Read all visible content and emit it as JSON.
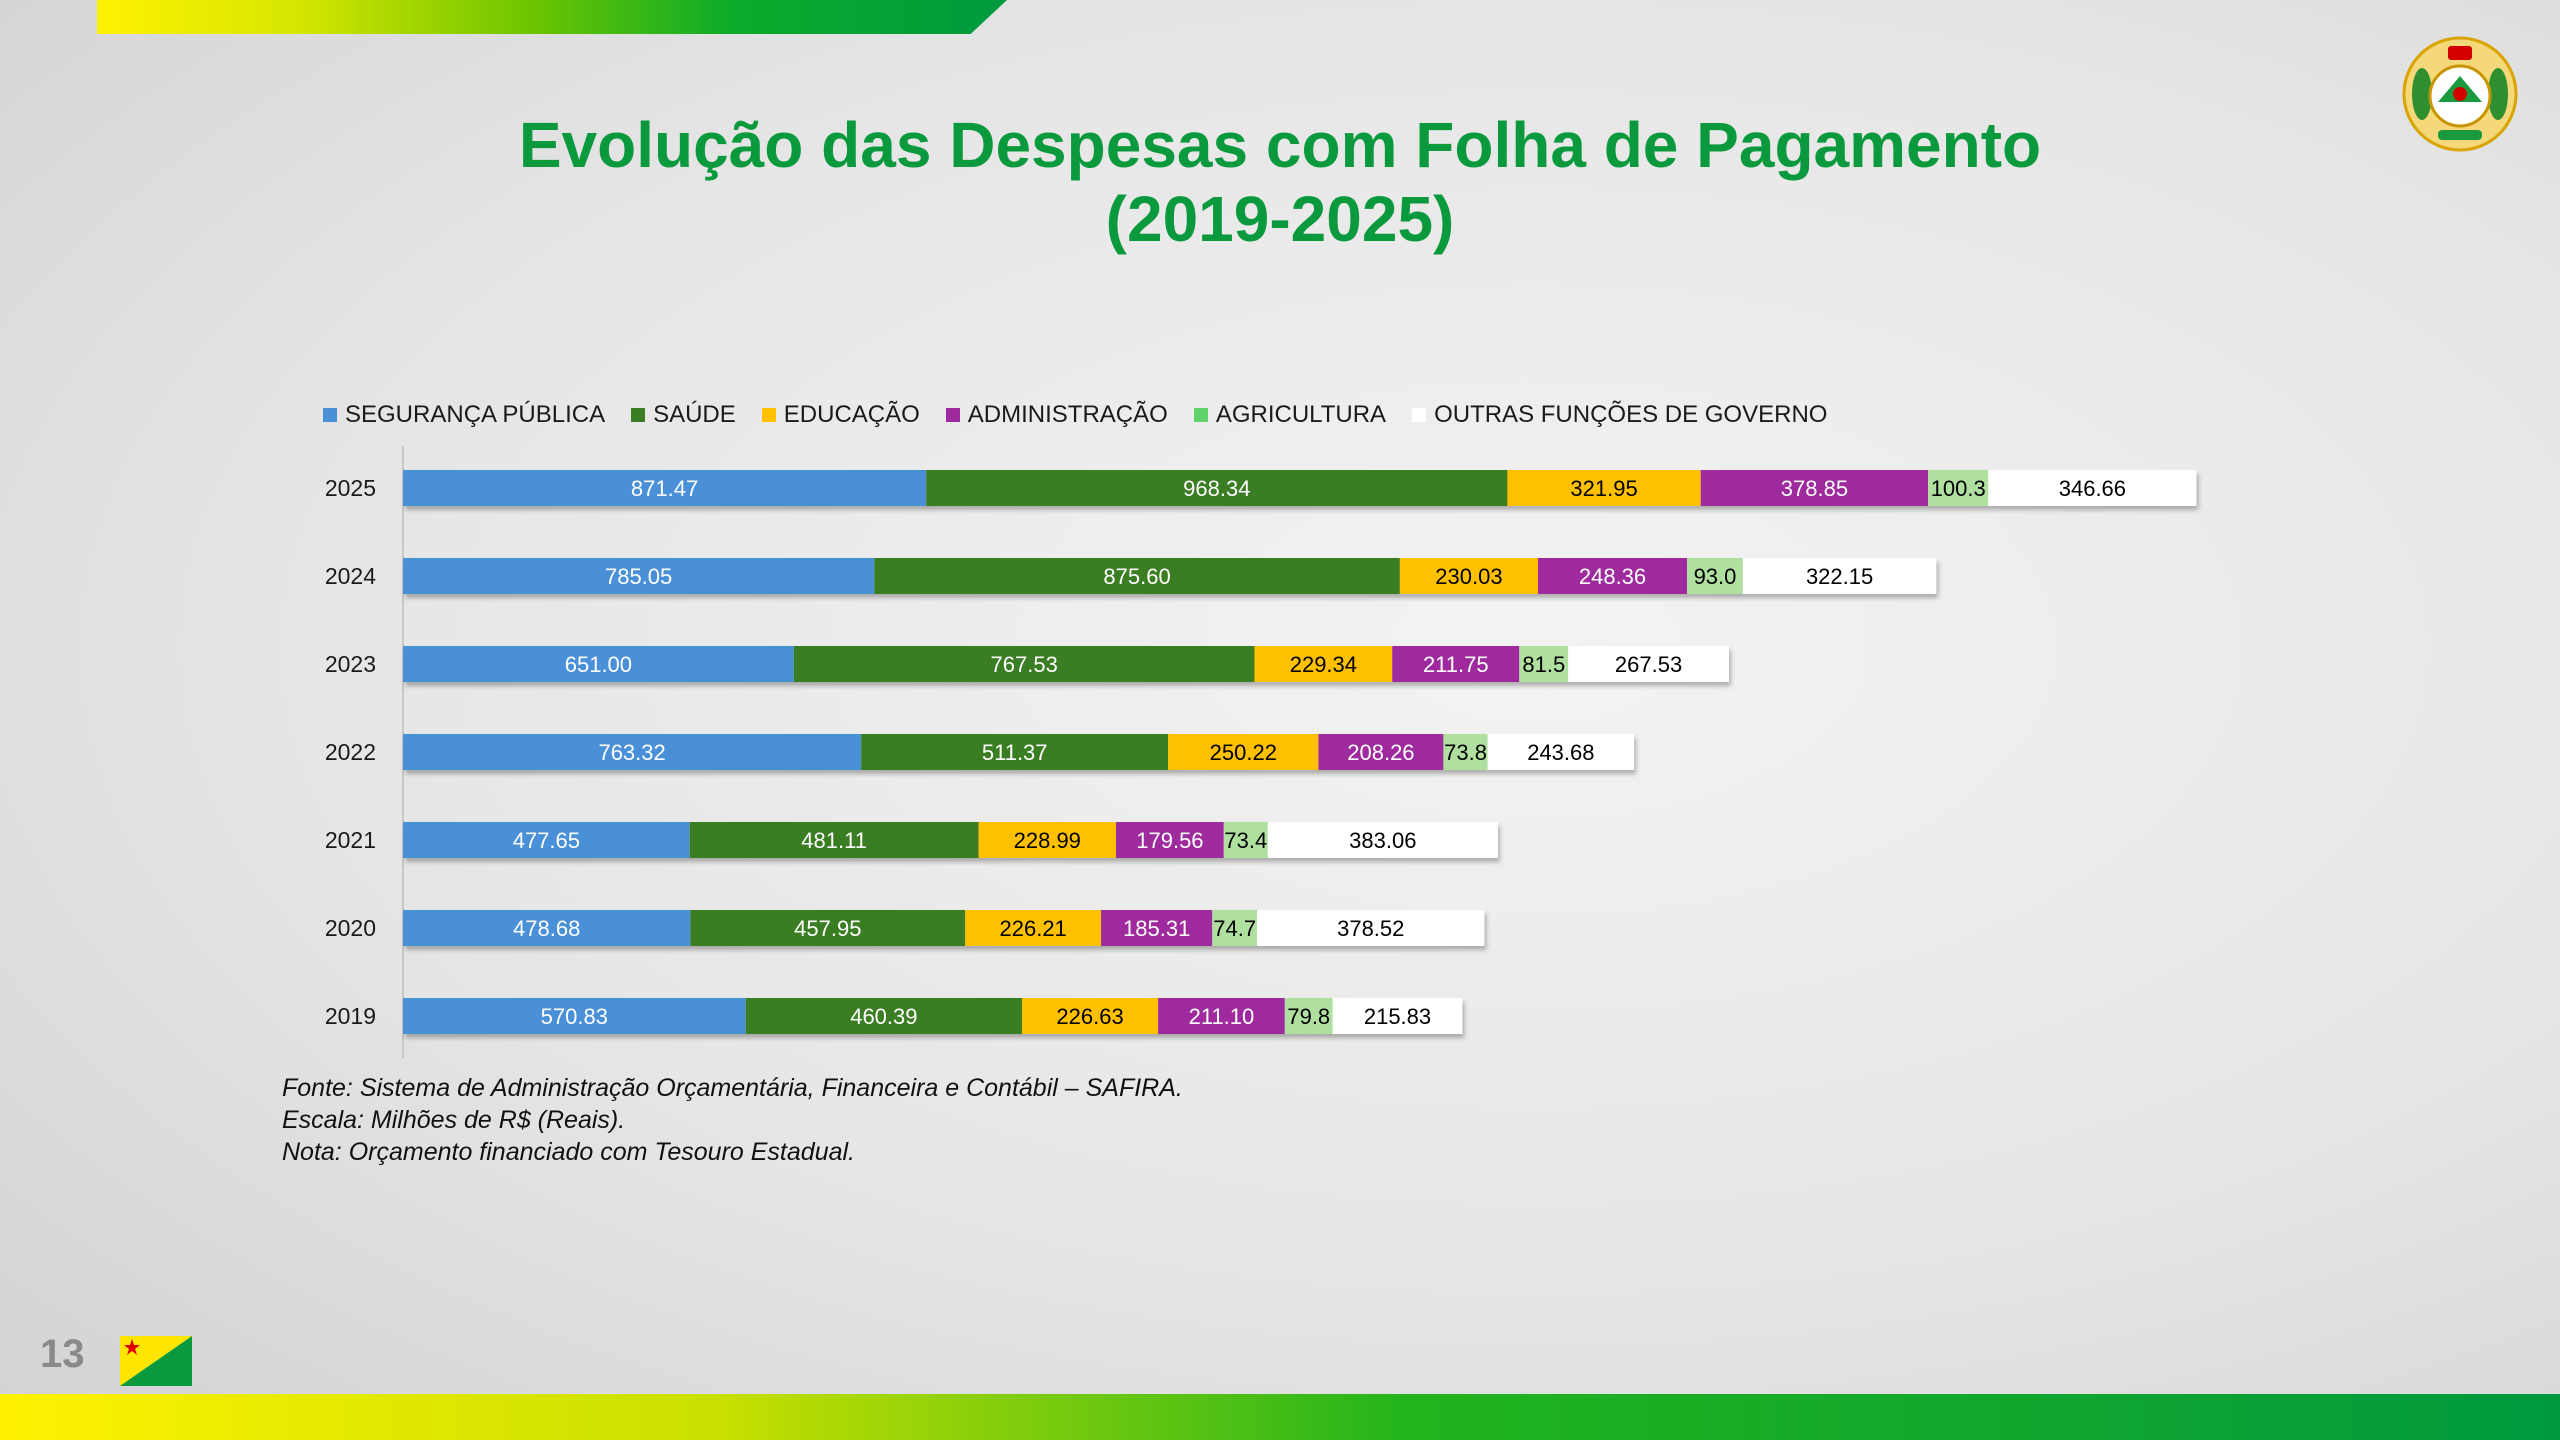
{
  "slide": {
    "title_line1": "Evolução das Despesas com Folha de Pagamento",
    "title_line2": "(2019-2025)",
    "page_number": "13"
  },
  "notes": {
    "fonte": "Fonte: Sistema de Administração Orçamentária, Financeira e Contábil – SAFIRA.",
    "escala": "Escala: Milhões de R$ (Reais).",
    "nota": "Nota: Orçamento financiado com Tesouro Estadual."
  },
  "colors": {
    "title": "#0a9a3d",
    "seguranca": "#4a90d9",
    "saude": "#3a7d22",
    "educacao": "#ffc000",
    "administracao": "#9e2a9e",
    "agricultura": "#b0e0a0",
    "outras": "#ffffff"
  },
  "chart_data": {
    "type": "bar",
    "orientation": "horizontal",
    "stacked": true,
    "title": "Evolução das Despesas com Folha de Pagamento (2019-2025)",
    "xlabel": "",
    "ylabel": "",
    "units": "Milhões de R$",
    "legend_position": "top",
    "categories": [
      "2025",
      "2024",
      "2023",
      "2022",
      "2021",
      "2020",
      "2019"
    ],
    "xlim": [
      0,
      3000
    ],
    "series": [
      {
        "name": "SEGURANÇA PÚBLICA",
        "color": "#4a90d9",
        "label_color": "#ffffff",
        "values": [
          871.47,
          785.05,
          651.0,
          763.32,
          477.65,
          478.68,
          570.83
        ],
        "labels": [
          "871.47",
          "785.05",
          "651.00",
          "763.32",
          "477.65",
          "478.68",
          "570.83"
        ]
      },
      {
        "name": "SAÚDE",
        "color": "#3a7d22",
        "label_color": "#ffffff",
        "values": [
          968.34,
          875.6,
          767.53,
          511.37,
          481.11,
          457.95,
          460.39
        ],
        "labels": [
          "968.34",
          "875.60",
          "767.53",
          "511.37",
          "481.11",
          "457.95",
          "460.39"
        ]
      },
      {
        "name": "EDUCAÇÃO",
        "color": "#ffc000",
        "label_color": "#000000",
        "values": [
          321.95,
          230.03,
          229.34,
          250.22,
          228.99,
          226.21,
          226.63
        ],
        "labels": [
          "321.95",
          "230.03",
          "229.34",
          "250.22",
          "228.99",
          "226.21",
          "226.63"
        ]
      },
      {
        "name": "ADMINISTRAÇÃO",
        "color": "#9e2a9e",
        "label_color": "#ffffff",
        "values": [
          378.85,
          248.36,
          211.75,
          208.26,
          179.56,
          185.31,
          211.1
        ],
        "labels": [
          "378.85",
          "248.36",
          "211.75",
          "208.26",
          "179.56",
          "185.31",
          "211.10"
        ]
      },
      {
        "name": "AGRICULTURA",
        "legend_color": "#5fd36a",
        "color": "#b0e0a0",
        "label_color": "#000000",
        "values": [
          100.3,
          93.0,
          81.5,
          73.8,
          73.4,
          74.7,
          79.8
        ],
        "labels": [
          "100.3",
          "93.0",
          "81.5",
          "73.8",
          "73.4",
          "74.7",
          "79.8"
        ]
      },
      {
        "name": "OUTRAS FUNÇÕES DE GOVERNO",
        "color": "#ffffff",
        "label_color": "#000000",
        "values": [
          346.66,
          322.15,
          267.53,
          243.68,
          383.06,
          378.52,
          215.83
        ],
        "labels": [
          "346.66",
          "322.15",
          "267.53",
          "243.68",
          "383.06",
          "378.52",
          "215.83"
        ]
      }
    ]
  }
}
